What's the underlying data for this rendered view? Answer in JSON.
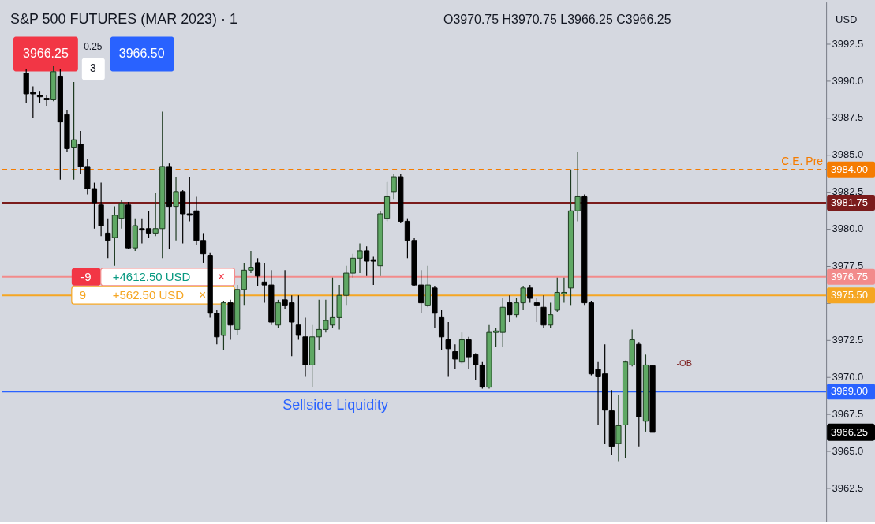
{
  "chart_data": {
    "type": "candlestick",
    "title": "S&P 500 FUTURES (MAR 2023) · 1",
    "subtitle": "O3970.75 H3970.75 L3966.25 C3966.25",
    "ylabel": "USD",
    "categories": [
      null,
      null,
      null,
      null,
      null,
      null,
      null,
      null,
      null,
      null,
      null,
      null,
      null,
      null,
      null,
      null,
      null,
      null,
      null,
      null,
      null,
      null,
      null,
      null,
      null,
      null,
      null,
      null,
      null,
      null,
      null,
      null,
      null,
      null,
      null,
      null,
      null,
      null,
      null,
      null,
      null,
      null,
      null,
      null,
      null,
      null,
      null,
      null,
      null,
      null,
      null,
      null,
      null,
      null,
      null,
      null,
      null,
      null,
      null,
      null,
      null,
      null,
      null,
      null,
      null,
      null,
      null,
      null,
      null,
      null,
      null,
      null,
      null,
      null,
      null,
      null,
      null,
      null,
      null,
      null,
      null,
      null,
      null,
      null,
      null,
      null,
      null,
      null,
      null,
      null,
      null,
      null,
      null,
      null,
      null,
      null,
      null,
      null,
      null,
      null,
      null,
      null,
      null,
      null,
      null,
      null,
      null,
      null,
      null,
      null,
      null,
      null,
      null,
      null,
      null,
      null,
      null,
      null,
      null,
      null,
      null
    ],
    "ohlc": [
      null,
      null,
      null,
      [
        3990.5,
        3990.8,
        3988.5,
        3989.1
      ],
      [
        3989.2,
        3989.6,
        3987.5,
        3989.1
      ],
      [
        3989.0,
        3989.3,
        3988.5,
        3988.9
      ],
      [
        3988.8,
        3989.0,
        3988.3,
        3988.7
      ],
      [
        3988.7,
        3991.0,
        3988.6,
        3990.6
      ],
      [
        3990.3,
        3990.8,
        3983.3,
        3987.2
      ],
      [
        3987.7,
        3988.0,
        3985.2,
        3985.4
      ],
      [
        3985.5,
        3989.9,
        3983.3,
        3986.0
      ],
      [
        3985.7,
        3986.6,
        3983.7,
        3984.2
      ],
      [
        3984.2,
        3984.7,
        3982.3,
        3982.7
      ],
      [
        3982.7,
        3983.1,
        3980.0,
        3981.75
      ],
      [
        3981.6,
        3983.1,
        3979.5,
        3980.2
      ],
      [
        3979.7,
        3980.7,
        3978.0,
        3979.2
      ],
      [
        3979.4,
        3981.5,
        3977.5,
        3980.9
      ],
      [
        3980.7,
        3981.9,
        3980.0,
        3981.7
      ],
      [
        3981.6,
        3981.8,
        3978.6,
        3978.7
      ],
      [
        3978.7,
        3980.7,
        3978.5,
        3980.2
      ],
      [
        3980.0,
        3980.7,
        3979.0,
        3979.9
      ],
      [
        3980.0,
        3981.2,
        3979.4,
        3979.7
      ],
      [
        3979.7,
        3982.4,
        3979.5,
        3980.0
      ],
      [
        3980.0,
        3987.9,
        3978.0,
        3984.2
      ],
      [
        3984.2,
        3984.4,
        3978.6,
        3981.5
      ],
      [
        3981.5,
        3983.5,
        3979.2,
        3982.5
      ],
      [
        3982.5,
        3982.6,
        3979.0,
        3981.0
      ],
      [
        3981.0,
        3983.5,
        3980.5,
        3980.9
      ],
      [
        3981.2,
        3982.2,
        3978.9,
        3979.2
      ],
      [
        3979.2,
        3979.7,
        3977.7,
        3978.3
      ],
      [
        3978.2,
        3978.4,
        3974.0,
        3974.3
      ],
      [
        3974.3,
        3974.5,
        3972.2,
        3972.7
      ],
      [
        3972.8,
        3975.1,
        3971.8,
        3975.0
      ],
      [
        3975.0,
        3975.2,
        3972.5,
        3973.5
      ],
      [
        3973.2,
        3976.2,
        3972.8,
        3975.9
      ],
      [
        3975.9,
        3977.7,
        3974.8,
        3977.2
      ],
      [
        3977.2,
        3978.5,
        3977.0,
        3977.4
      ],
      [
        3977.7,
        3978.0,
        3976.1,
        3976.8
      ],
      [
        3976.4,
        3977.7,
        3975.0,
        3976.2
      ],
      [
        3976.2,
        3977.2,
        3973.5,
        3973.7
      ],
      [
        3973.5,
        3975.2,
        3973.3,
        3975.0
      ],
      [
        3975.2,
        3977.2,
        3974.6,
        3974.8
      ],
      [
        3975.0,
        3975.5,
        3971.4,
        3973.7
      ],
      [
        3973.5,
        3975.5,
        3972.5,
        3972.8
      ],
      [
        3972.7,
        3974.0,
        3970.0,
        3970.8
      ],
      [
        3970.8,
        3973.5,
        3969.3,
        3972.7
      ],
      [
        3972.7,
        3975.2,
        3971.8,
        3973.2
      ],
      [
        3973.2,
        3975.2,
        3973.0,
        3973.8
      ],
      [
        3973.5,
        3976.7,
        3973.3,
        3974.0
      ],
      [
        3974.0,
        3976.2,
        3973.2,
        3975.5
      ],
      [
        3975.5,
        3977.5,
        3974.8,
        3977.0
      ],
      [
        3977.0,
        3978.3,
        3976.7,
        3978.0
      ],
      [
        3978.0,
        3979.0,
        3977.0,
        3978.5
      ],
      [
        3978.5,
        3978.8,
        3976.8,
        3977.8
      ],
      [
        3977.9,
        3978.1,
        3976.2,
        3977.8
      ],
      [
        3977.5,
        3981.2,
        3976.8,
        3981.0
      ],
      [
        3980.7,
        3983.2,
        3980.5,
        3982.2
      ],
      [
        3982.5,
        3983.7,
        3982.0,
        3983.5
      ],
      [
        3983.5,
        3983.7,
        3980.4,
        3980.5
      ],
      [
        3980.5,
        3980.7,
        3978.0,
        3979.2
      ],
      [
        3979.2,
        3979.4,
        3976.1,
        3976.2
      ],
      [
        3976.2,
        3977.2,
        3974.3,
        3975.0
      ],
      [
        3974.8,
        3977.5,
        3974.7,
        3976.2
      ],
      [
        3976.0,
        3976.1,
        3973.3,
        3974.3
      ],
      [
        3974.0,
        3974.5,
        3971.8,
        3972.7
      ],
      [
        3972.5,
        3973.7,
        3970.0,
        3971.9
      ],
      [
        3971.7,
        3972.2,
        3970.5,
        3971.2
      ],
      [
        3971.0,
        3973.0,
        3970.9,
        3972.5
      ],
      [
        3972.5,
        3972.7,
        3970.5,
        3971.3
      ],
      [
        3971.5,
        3971.6,
        3969.8,
        3970.8
      ],
      [
        3970.8,
        3971.0,
        3969.2,
        3969.3
      ],
      [
        3969.3,
        3973.5,
        3969.2,
        3973.0
      ],
      [
        3973.0,
        3973.3,
        3972.0,
        3973.1
      ],
      [
        3973.0,
        3975.3,
        3972.0,
        3974.7
      ],
      [
        3975.0,
        3975.5,
        3973.7,
        3974.2
      ],
      [
        3974.2,
        3975.3,
        3974.0,
        3975.0
      ],
      [
        3975.0,
        3976.1,
        3974.5,
        3976.0
      ],
      [
        3976.0,
        3976.2,
        3975.0,
        3975.3
      ],
      [
        3975.0,
        3975.3,
        3973.7,
        3974.8
      ],
      [
        3974.7,
        3975.5,
        3973.3,
        3973.5
      ],
      [
        3973.5,
        3975.0,
        3973.3,
        3974.2
      ],
      [
        3974.5,
        3976.7,
        3974.4,
        3975.7
      ],
      [
        3975.6,
        3976.7,
        3975.0,
        3975.7
      ],
      [
        3976.0,
        3984.0,
        3974.8,
        3981.2
      ],
      [
        3981.2,
        3985.2,
        3980.5,
        3982.2
      ],
      [
        3982.2,
        3982.3,
        3974.8,
        3975.0
      ],
      [
        3975.0,
        3975.1,
        3970.1,
        3970.2
      ],
      [
        3970.5,
        3971.0,
        3966.75,
        3970.0
      ],
      [
        3970.2,
        3972.2,
        3965.5,
        3967.75
      ],
      [
        3967.7,
        3969.1,
        3964.75,
        3965.3
      ],
      [
        3965.5,
        3968.75,
        3964.3,
        3966.7
      ],
      [
        3966.75,
        3971.1,
        3964.5,
        3971.0
      ],
      [
        3970.8,
        3973.2,
        3970.7,
        3972.5
      ],
      [
        3972.2,
        3972.3,
        3965.3,
        3967.3
      ],
      [
        3967.0,
        3971.5,
        3966.3,
        3970.8
      ],
      [
        3970.75,
        3970.75,
        3966.25,
        3966.25
      ],
      null,
      null,
      null,
      null,
      null,
      null,
      null,
      null,
      null,
      null,
      null,
      null,
      null,
      null,
      null,
      null,
      null,
      null,
      null,
      null,
      null,
      null,
      null,
      null,
      null
    ],
    "colors": [
      null,
      null,
      null,
      "#000000",
      "#000000",
      "#000000",
      "#000000",
      "#5fa864",
      "#000000",
      "#000000",
      "#5fa864",
      "#000000",
      "#000000",
      "#000000",
      "#000000",
      "#000000",
      "#5fa864",
      "#5fa864",
      "#000000",
      "#5fa864",
      "#000000",
      "#000000",
      "#5fa864",
      "#5fa864",
      "#000000",
      "#5fa864",
      "#000000",
      "#000000",
      "#000000",
      "#000000",
      "#000000",
      "#000000",
      "#5fa864",
      "#000000",
      "#5fa864",
      "#5fa864",
      "#5fa864",
      "#000000",
      "#000000",
      "#000000",
      "#5fa864",
      "#000000",
      "#000000",
      "#000000",
      "#000000",
      "#5fa864",
      "#5fa864",
      "#5fa864",
      "#5fa864",
      "#5fa864",
      "#5fa864",
      "#5fa864",
      "#5fa864",
      "#000000",
      "#000000",
      "#5fa864",
      "#5fa864",
      "#5fa864",
      "#000000",
      "#000000",
      "#000000",
      "#000000",
      "#5fa864",
      "#000000",
      "#000000",
      "#000000",
      "#000000",
      "#5fa864",
      "#000000",
      "#000000",
      "#000000",
      "#5fa864",
      "#5fa864",
      "#5fa864",
      "#000000",
      "#5fa864",
      "#5fa864",
      "#000000",
      "#000000",
      "#000000",
      "#5fa864",
      "#5fa864",
      "#5fa864",
      "#5fa864",
      "#5fa864",
      "#000000",
      "#000000",
      "#000000",
      "#000000",
      "#000000",
      "#5fa864",
      "#5fa864",
      "#5fa864",
      "#000000",
      "#5fa864",
      "#000000",
      null,
      null,
      null,
      null,
      null,
      null,
      null,
      null,
      null,
      null,
      null,
      null,
      null,
      null,
      null,
      null,
      null,
      null,
      null,
      null,
      null,
      null,
      null,
      null,
      null
    ],
    "ylim": [
      3960.2,
      3995.3
    ],
    "yticks": [
      {
        "value": 3962.5,
        "label": "3962.5"
      },
      {
        "value": 3965,
        "label": "3965.0"
      },
      {
        "value": 3967.5,
        "label": "3967.5"
      },
      {
        "value": 3970,
        "label": "3970.0"
      },
      {
        "value": 3972.5,
        "label": "3972.5"
      },
      {
        "value": 3975,
        "label": null
      },
      {
        "value": 3977.5,
        "label": "3977.5"
      },
      {
        "value": 3980,
        "label": "3980.0"
      },
      {
        "value": 3982.5,
        "label": "3982.5"
      },
      {
        "value": 3985,
        "label": "3985.0"
      },
      {
        "value": 3987.5,
        "label": "3987.5"
      },
      {
        "value": 3990,
        "label": "3990.0"
      },
      {
        "value": 3992.5,
        "label": "3992.5"
      }
    ],
    "ref_lines": [
      {
        "axis": "y",
        "value": 3984.0,
        "label": "3984.00",
        "color": "#f57c00",
        "line_style": "dashed"
      },
      {
        "axis": "y",
        "value": 3981.75,
        "label": "3981.75",
        "color": "#7b1c1c"
      },
      {
        "axis": "y",
        "value": 3976.75,
        "label": "3976.75",
        "color": "#f28b8b"
      },
      {
        "axis": "y",
        "value": 3975.5,
        "label": "3975.50",
        "color": "#f5a623"
      },
      {
        "axis": "y",
        "value": 3969.0,
        "label": "3969.00",
        "color": "#2962ff"
      }
    ],
    "annotations": [
      "3966.25",
      "0.25",
      "3",
      "3966.50",
      "-OB",
      {
        "text": "-9",
        "y": 3976.75
      },
      {
        "text": "+4612.50 USD",
        "y": 3976.75
      },
      {
        "text": "×",
        "y": 3976.75
      },
      {
        "text": "9",
        "y": 3975.5
      },
      {
        "text": "+562.50 USD",
        "y": 3975.5
      },
      {
        "text": "×",
        "y": 3975.5
      },
      "3966.25",
      "C.E. Pre",
      "Sellside Liquidity"
    ]
  }
}
